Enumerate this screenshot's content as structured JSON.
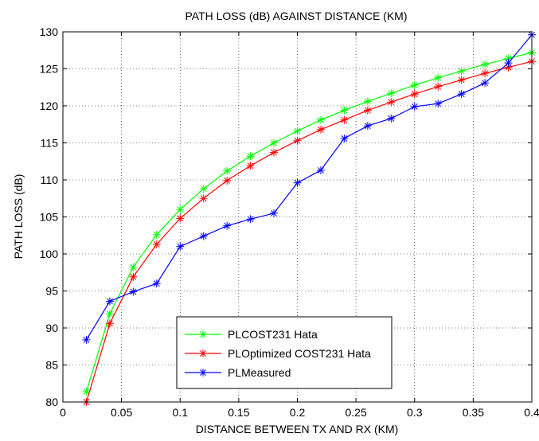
{
  "chart_data": {
    "type": "line",
    "title": "PATH LOSS (dB) AGAINST DISTANCE (KM)",
    "xlabel": "DISTANCE BETWEEN TX AND RX (KM)",
    "ylabel": "PATH LOSS (dB)",
    "xlim": [
      0,
      0.4
    ],
    "ylim": [
      80,
      130
    ],
    "xticks": [
      0,
      0.05,
      0.1,
      0.15,
      0.2,
      0.25,
      0.3,
      0.35,
      0.4
    ],
    "xtick_labels": [
      "0",
      "0.05",
      "0.1",
      "0.15",
      "0.2",
      "0.25",
      "0.3",
      "0.35",
      "0.4"
    ],
    "yticks": [
      80,
      85,
      90,
      95,
      100,
      105,
      110,
      115,
      120,
      125,
      130
    ],
    "ytick_labels": [
      "80",
      "85",
      "90",
      "95",
      "100",
      "105",
      "110",
      "115",
      "120",
      "125",
      "130"
    ],
    "grid": true,
    "legend_position": "bottom-center",
    "x": [
      0.02,
      0.04,
      0.06,
      0.08,
      0.1,
      0.12,
      0.14,
      0.16,
      0.18,
      0.2,
      0.22,
      0.24,
      0.26,
      0.28,
      0.3,
      0.32,
      0.34,
      0.36,
      0.38,
      0.4
    ],
    "series": [
      {
        "name": "PLCOST231 Hata",
        "color": "#00ff00",
        "marker": "asterisk",
        "values": [
          81.4,
          91.9,
          98.2,
          102.6,
          106.0,
          108.8,
          111.2,
          113.2,
          115.0,
          116.6,
          118.1,
          119.4,
          120.6,
          121.7,
          122.8,
          123.8,
          124.7,
          125.6,
          126.4,
          127.2
        ]
      },
      {
        "name": "PLOptimized COST231 Hata",
        "color": "#ff0000",
        "marker": "asterisk",
        "values": [
          80.0,
          90.6,
          96.9,
          101.3,
          104.8,
          107.5,
          109.9,
          111.9,
          113.7,
          115.3,
          116.8,
          118.1,
          119.4,
          120.5,
          121.6,
          122.6,
          123.5,
          124.4,
          125.2,
          126.0
        ]
      },
      {
        "name": "PLMeasured",
        "color": "#0000ff",
        "marker": "asterisk",
        "values": [
          88.4,
          93.6,
          94.9,
          96.0,
          101.0,
          102.4,
          103.8,
          104.7,
          105.5,
          109.6,
          111.3,
          115.6,
          117.3,
          118.3,
          119.9,
          120.3,
          121.6,
          123.1,
          125.8,
          129.6
        ]
      }
    ]
  }
}
